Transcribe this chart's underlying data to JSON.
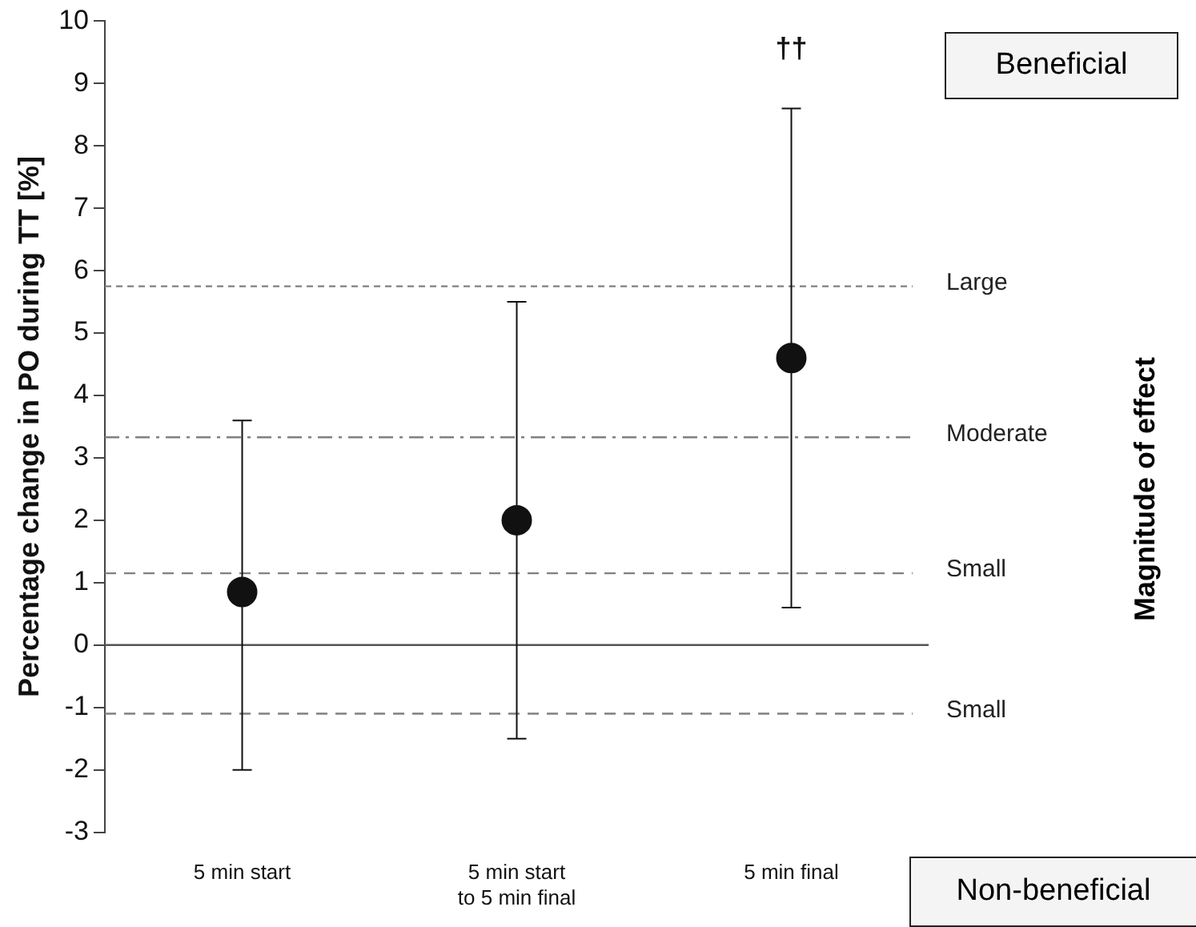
{
  "chart_data": {
    "type": "scatter",
    "ylabel": "Percentage change in PO during TT [%]",
    "categories": [
      "5 min start",
      "5 min start\nto 5 min final",
      "5 min final"
    ],
    "series": [
      {
        "color": "#111111",
        "values": [
          0.85,
          2.0,
          4.6
        ],
        "errors": [
          [
            -2.0,
            3.6
          ],
          [
            -1.5,
            5.5
          ],
          [
            0.6,
            8.6
          ]
        ]
      }
    ],
    "ylim": [
      -3,
      10
    ],
    "yticks": [
      -3,
      -2,
      -1,
      0,
      1,
      2,
      3,
      4,
      5,
      6,
      7,
      8,
      9,
      10
    ],
    "grid": false,
    "legend": false,
    "marker": "circle",
    "ref_lines": [
      {
        "axis": "y",
        "value": 5.75,
        "label": "Large",
        "color": "#808080",
        "line_style": "dotted"
      },
      {
        "axis": "y",
        "value": 3.33,
        "label": "Moderate",
        "color": "#808080",
        "line_style": "dashdot"
      },
      {
        "axis": "y",
        "value": 1.15,
        "label": "Small",
        "color": "#808080",
        "line_style": "dashed"
      },
      {
        "axis": "y",
        "value": 0,
        "label": null,
        "color": "#555555",
        "line_style": "solid"
      },
      {
        "axis": "y",
        "value": -1.1,
        "label": "Small",
        "color": "#808080",
        "line_style": "dashed"
      }
    ],
    "annotations": [
      "††",
      "Magnitude of effect",
      "Beneficial",
      "Non-beneficial"
    ]
  }
}
